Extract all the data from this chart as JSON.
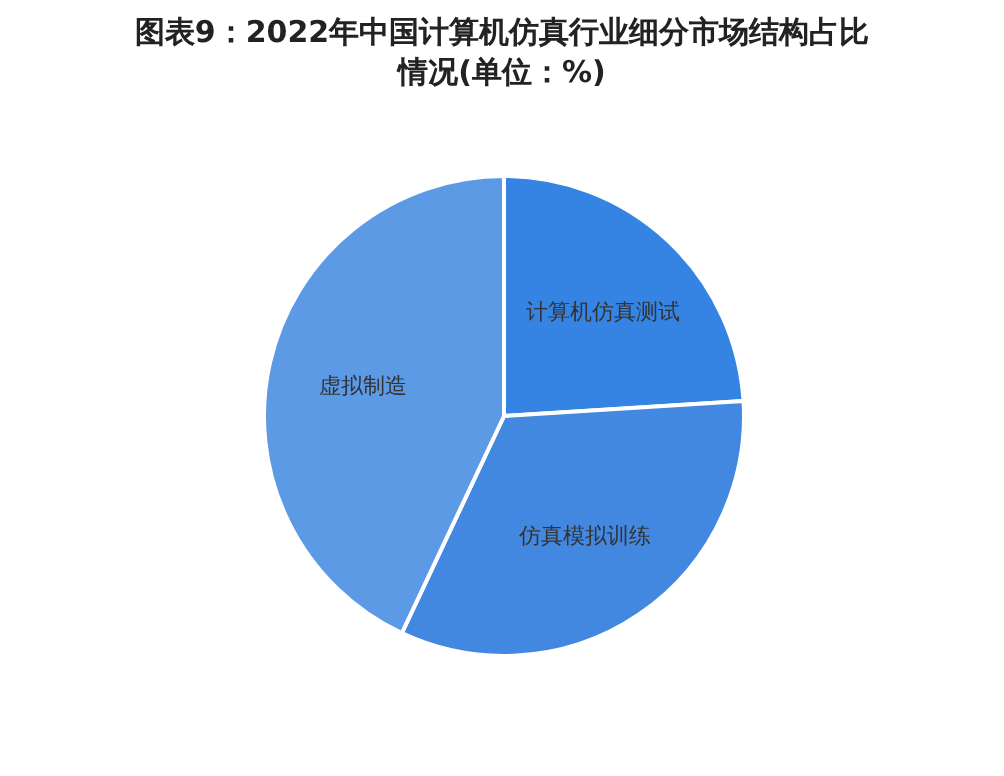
{
  "chart_data": {
    "type": "pie",
    "title": "图表9：2022年中国计算机仿真行业细分市场结构占比情况(单位：%)",
    "categories": [
      "计算机仿真测试",
      "仿真模拟训练",
      "虚拟制造"
    ],
    "values": [
      24,
      33,
      43
    ],
    "colors": [
      "#3584e4",
      "#4388e0",
      "#5c9ae6"
    ],
    "legend": false
  }
}
